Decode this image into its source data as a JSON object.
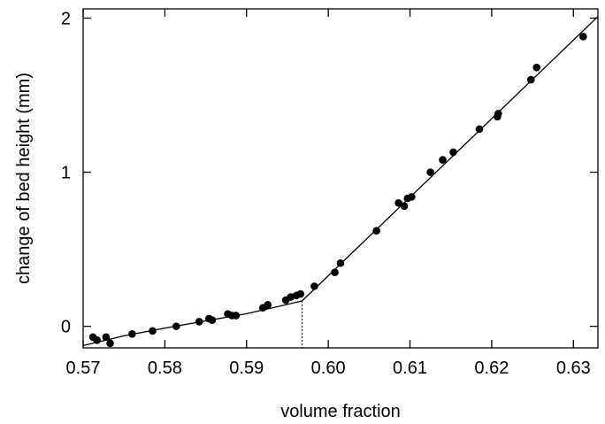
{
  "chart_data": {
    "type": "scatter",
    "xlabel": "volume fraction",
    "ylabel": "change of bed height (mm)",
    "xlim": [
      0.57,
      0.633
    ],
    "ylim": [
      -0.14,
      2.06
    ],
    "x_ticks": [
      {
        "value": 0.57,
        "label": "0.57"
      },
      {
        "value": 0.58,
        "label": "0.58"
      },
      {
        "value": 0.59,
        "label": "0.59"
      },
      {
        "value": 0.6,
        "label": "0.60"
      },
      {
        "value": 0.61,
        "label": "0.61"
      },
      {
        "value": 0.62,
        "label": "0.62"
      },
      {
        "value": 0.63,
        "label": "0.63"
      }
    ],
    "y_ticks": [
      {
        "value": 0,
        "label": "0"
      },
      {
        "value": 1,
        "label": "1"
      },
      {
        "value": 2,
        "label": "2"
      }
    ],
    "grid": false,
    "points": [
      {
        "x": 0.5712,
        "y": -0.07
      },
      {
        "x": 0.5717,
        "y": -0.09
      },
      {
        "x": 0.5728,
        "y": -0.07
      },
      {
        "x": 0.5733,
        "y": -0.11
      },
      {
        "x": 0.576,
        "y": -0.05
      },
      {
        "x": 0.5785,
        "y": -0.03
      },
      {
        "x": 0.5814,
        "y": 0.0
      },
      {
        "x": 0.5842,
        "y": 0.03
      },
      {
        "x": 0.5854,
        "y": 0.05
      },
      {
        "x": 0.5858,
        "y": 0.04
      },
      {
        "x": 0.5877,
        "y": 0.08
      },
      {
        "x": 0.5882,
        "y": 0.07
      },
      {
        "x": 0.5887,
        "y": 0.07
      },
      {
        "x": 0.592,
        "y": 0.12
      },
      {
        "x": 0.5926,
        "y": 0.14
      },
      {
        "x": 0.5948,
        "y": 0.17
      },
      {
        "x": 0.5954,
        "y": 0.19
      },
      {
        "x": 0.5961,
        "y": 0.2
      },
      {
        "x": 0.5966,
        "y": 0.21
      },
      {
        "x": 0.5983,
        "y": 0.26
      },
      {
        "x": 0.6008,
        "y": 0.35
      },
      {
        "x": 0.6015,
        "y": 0.41
      },
      {
        "x": 0.6059,
        "y": 0.62
      },
      {
        "x": 0.6086,
        "y": 0.8
      },
      {
        "x": 0.6093,
        "y": 0.78
      },
      {
        "x": 0.6097,
        "y": 0.83
      },
      {
        "x": 0.6102,
        "y": 0.84
      },
      {
        "x": 0.6125,
        "y": 1.0
      },
      {
        "x": 0.614,
        "y": 1.08
      },
      {
        "x": 0.6153,
        "y": 1.13
      },
      {
        "x": 0.6185,
        "y": 1.28
      },
      {
        "x": 0.6207,
        "y": 1.36
      },
      {
        "x": 0.6208,
        "y": 1.38
      },
      {
        "x": 0.6248,
        "y": 1.6
      },
      {
        "x": 0.6255,
        "y": 1.68
      },
      {
        "x": 0.6312,
        "y": 1.88
      }
    ],
    "fit_curve": [
      {
        "x": 0.57,
        "y": -0.125
      },
      {
        "x": 0.575,
        "y": -0.062
      },
      {
        "x": 0.58,
        "y": -0.012
      },
      {
        "x": 0.585,
        "y": 0.035
      },
      {
        "x": 0.59,
        "y": 0.082
      },
      {
        "x": 0.594,
        "y": 0.13
      },
      {
        "x": 0.5968,
        "y": 0.165
      },
      {
        "x": 0.633,
        "y": 2.01
      }
    ],
    "transition_marker": {
      "x": 0.5968,
      "y": 0.165
    }
  }
}
